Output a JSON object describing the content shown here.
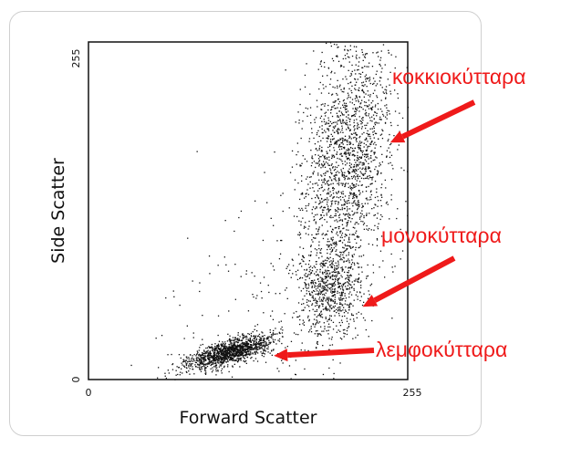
{
  "chart_data": {
    "type": "scatter",
    "title": "",
    "xlabel": "Forward Scatter",
    "ylabel": "Side Scatter",
    "xlim": [
      0,
      255
    ],
    "ylim": [
      0,
      255
    ],
    "x_ticks": [
      "0",
      "255"
    ],
    "y_ticks": [
      "0",
      "255"
    ],
    "grid": false,
    "point_color": "#111111",
    "clusters": [
      {
        "center": [
          112,
          21
        ],
        "spread": [
          17,
          4.5
        ],
        "tilt": 0.25,
        "density": 1400
      },
      {
        "center": [
          193,
          68
        ],
        "spread": [
          13,
          17
        ],
        "tilt": 0.0,
        "density": 620
      },
      {
        "center": [
          206,
          166
        ],
        "spread": [
          18,
          45
        ],
        "tilt": 0.9,
        "density": 1800
      },
      {
        "center": [
          160,
          60
        ],
        "spread": [
          55,
          50
        ],
        "tilt": 0.6,
        "density": 350
      }
    ],
    "annotations": [
      {
        "label": "κοκκιοκύτταρα",
        "color": "#ef1a1a",
        "points_to": [
          241,
          179
        ]
      },
      {
        "label": "μονοκύτταρα",
        "color": "#ef1a1a",
        "points_to": [
          219,
          55
        ]
      },
      {
        "label": "λεμφοκύτταρα",
        "color": "#ef1a1a",
        "points_to": [
          148,
          18
        ]
      }
    ]
  }
}
